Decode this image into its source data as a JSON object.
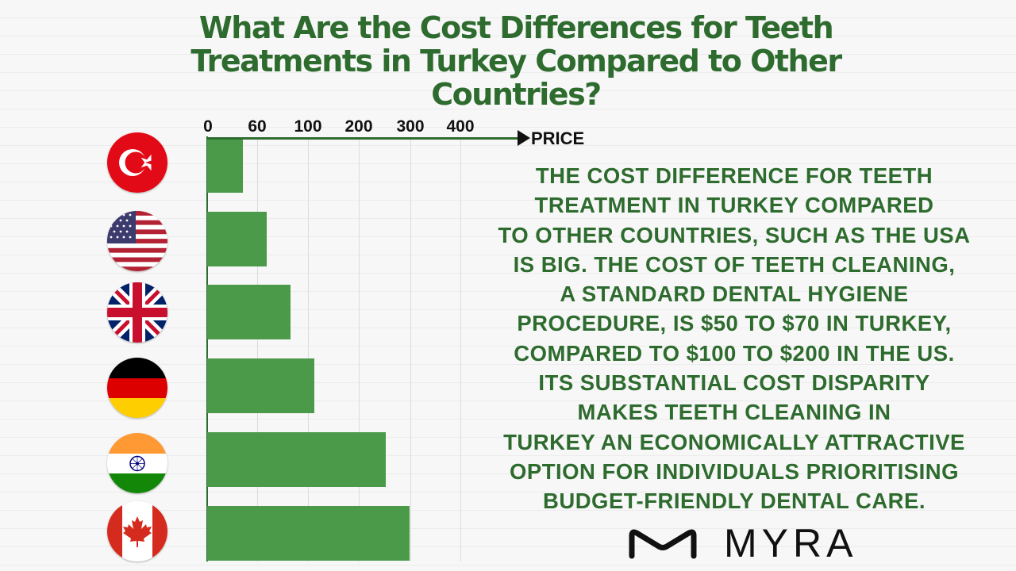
{
  "title": "What Are the Cost Differences for Teeth Treatments in Turkey Compared to Other Countries?",
  "chart_data": {
    "type": "bar",
    "orientation": "horizontal",
    "categories": [
      "Turkey",
      "USA",
      "United Kingdom",
      "Germany",
      "India",
      "Canada"
    ],
    "values": [
      60,
      100,
      140,
      180,
      300,
      340
    ],
    "x_ticks": [
      "0",
      "60",
      "100",
      "200",
      "300",
      "400"
    ],
    "xlabel": "PRICE",
    "bar_color": "#4a9a4a",
    "axis_color": "#2e6b2e",
    "grid": true
  },
  "flags": [
    {
      "icon": "turkey-flag-icon"
    },
    {
      "icon": "usa-flag-icon"
    },
    {
      "icon": "uk-flag-icon"
    },
    {
      "icon": "germany-flag-icon"
    },
    {
      "icon": "india-flag-icon"
    },
    {
      "icon": "canada-flag-icon"
    }
  ],
  "description_lines": [
    "THE COST DIFFERENCE FOR TEETH",
    "TREATMENT IN TURKEY COMPARED",
    "TO OTHER COUNTRIES, SUCH AS THE USA",
    "IS BIG. THE COST OF TEETH CLEANING,",
    "A STANDARD DENTAL HYGIENE",
    "PROCEDURE, IS $50 TO $70 IN TURKEY,",
    "COMPARED TO $100 TO $200 IN THE US.",
    "ITS SUBSTANTIAL COST DISPARITY",
    "MAKES TEETH CLEANING IN",
    "TURKEY AN ECONOMICALLY ATTRACTIVE",
    "OPTION FOR INDIVIDUALS PRIORITISING",
    "BUDGET-FRIENDLY DENTAL CARE."
  ],
  "logo": {
    "text": "MYRA",
    "icon": "myra-m-logo-icon"
  },
  "colors": {
    "title": "#2e6b2e",
    "text": "#2e6b2e",
    "bar": "#4a9a4a"
  }
}
